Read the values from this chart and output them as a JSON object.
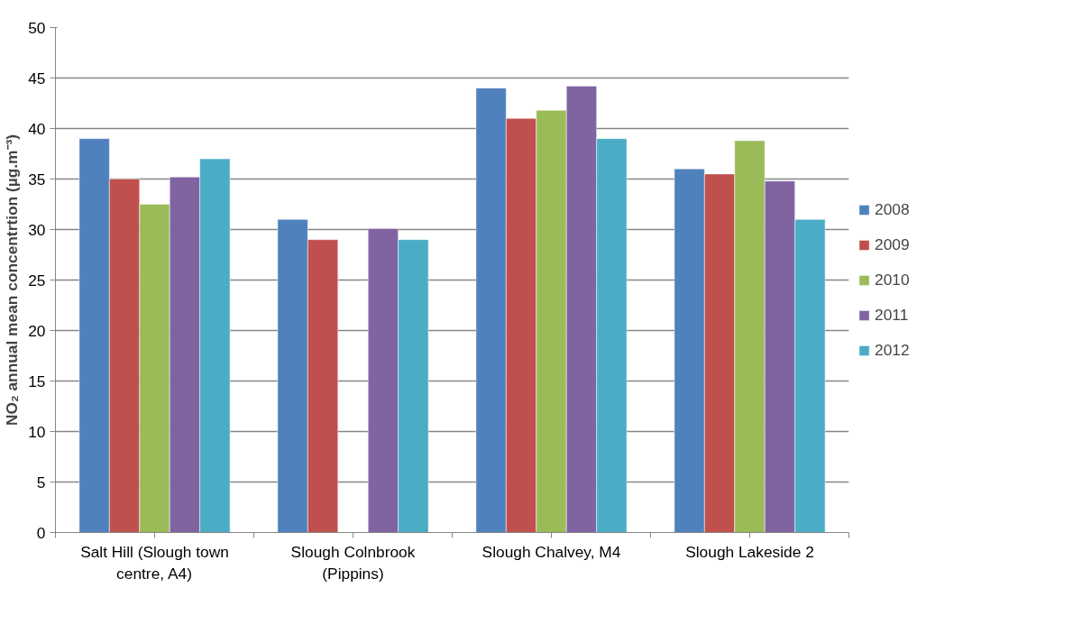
{
  "chart_data": {
    "type": "bar",
    "ylabel": "NO₂ annual mean concentrtion (µg.m⁻³)",
    "categories": [
      "Salt Hill (Slough town\ncentre, A4)",
      "Slough Colnbrook\n(Pippins)",
      "Slough Chalvey, M4",
      "Slough Lakeside 2"
    ],
    "series": [
      {
        "name": "2008",
        "color": "#4f81bd",
        "values": [
          39,
          31,
          44,
          36
        ]
      },
      {
        "name": "2009",
        "color": "#c0504d",
        "values": [
          35,
          29,
          41,
          35.5
        ]
      },
      {
        "name": "2010",
        "color": "#9bbb59",
        "values": [
          32.5,
          null,
          41.8,
          38.8
        ]
      },
      {
        "name": "2011",
        "color": "#8064a2",
        "values": [
          35.2,
          30.1,
          44.2,
          34.8
        ]
      },
      {
        "name": "2012",
        "color": "#4bacc6",
        "values": [
          37,
          29,
          39,
          31
        ]
      }
    ],
    "ylim": [
      0,
      50
    ],
    "yticks": [
      0,
      5,
      10,
      15,
      20,
      25,
      30,
      35,
      40,
      45,
      50
    ],
    "grid": "y",
    "legend": "right"
  }
}
